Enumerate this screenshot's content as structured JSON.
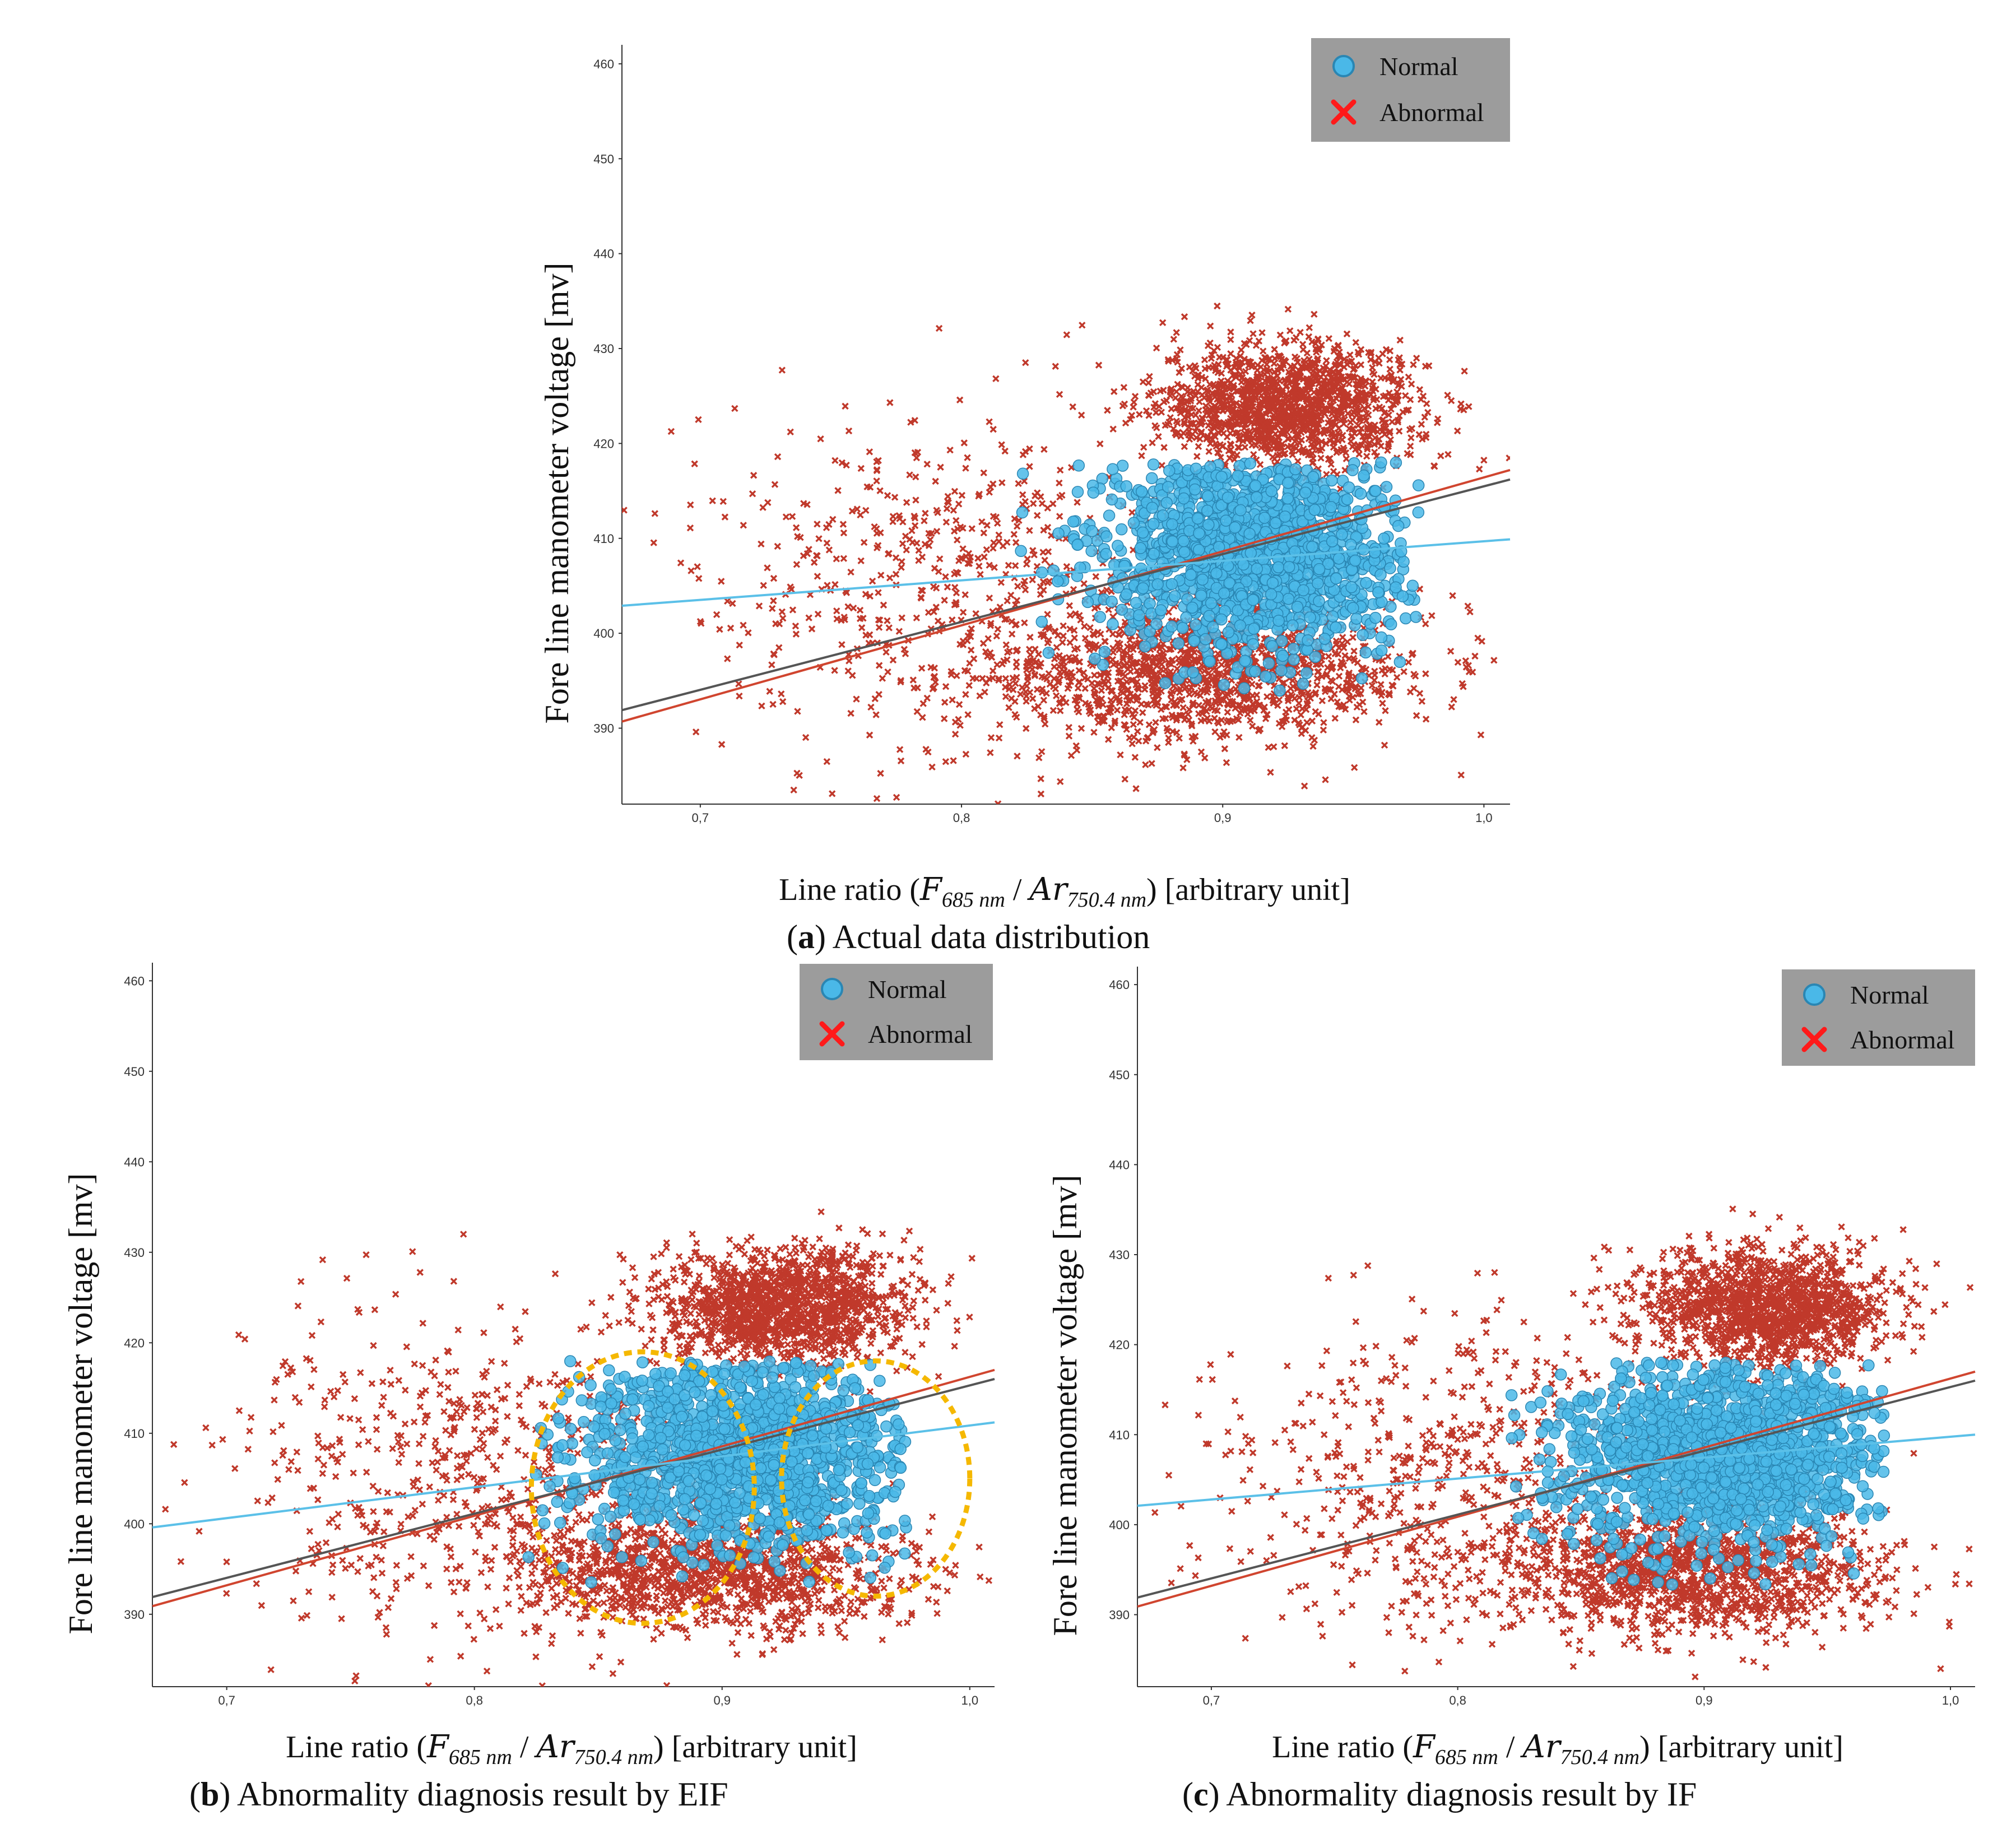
{
  "chart_data": [
    {
      "id": "a",
      "type": "scatter",
      "caption_letter": "a",
      "caption_text": ") Actual data distribution",
      "xlabel_prefix": "Line ratio (",
      "xlabel_F": "F",
      "xlabel_F_sub": "685 nm",
      "xlabel_sep": " / ",
      "xlabel_Ar": "Ar",
      "xlabel_Ar_sub": "750.4 nm",
      "xlabel_suffix": ") [arbitrary unit]",
      "ylabel": "Fore line manometer voltage [mv]",
      "xlim": [
        0.67,
        1.01
      ],
      "ylim": [
        382,
        462
      ],
      "xticks": [
        "0,7",
        "0,8",
        "0,9",
        "1,0"
      ],
      "yticks": [
        "390",
        "400",
        "410",
        "420",
        "430",
        "440",
        "450",
        "460"
      ],
      "legend": {
        "normal": "Normal",
        "abnormal": "Abnormal"
      },
      "series": [
        {
          "name": "Normal",
          "marker": "circle",
          "color": "#4ab8e8",
          "clusters": [
            {
              "x": 0.91,
              "y": 409,
              "sx": 0.03,
              "sy": 5.5,
              "n": 1500
            }
          ]
        },
        {
          "name": "Abnormal",
          "marker": "x",
          "color": "#c0392b",
          "clusters": [
            {
              "x": 0.925,
              "y": 424,
              "sx": 0.025,
              "sy": 3.2,
              "n": 1500
            },
            {
              "x": 0.895,
              "y": 396,
              "sx": 0.04,
              "sy": 3.5,
              "n": 1400
            },
            {
              "x": 0.8,
              "y": 405,
              "sx": 0.05,
              "sy": 9,
              "n": 650
            }
          ]
        }
      ],
      "fit_lines": [
        {
          "name": "red",
          "color": "#d0452f",
          "x": [
            0.67,
            1.01
          ],
          "y": [
            390.7,
            417.2
          ]
        },
        {
          "name": "black",
          "color": "#555555",
          "x": [
            0.67,
            1.01
          ],
          "y": [
            391.9,
            416.2
          ]
        },
        {
          "name": "blue",
          "color": "#5bc0e8",
          "x": [
            0.67,
            1.01
          ],
          "y": [
            402.9,
            409.9
          ]
        }
      ],
      "highlight_ellipses": []
    },
    {
      "id": "b",
      "type": "scatter",
      "caption_letter": "b",
      "caption_text": ") Abnormality diagnosis result by EIF",
      "xlabel_prefix": "Line ratio (",
      "xlabel_F": "F",
      "xlabel_F_sub": "685 nm",
      "xlabel_sep": " / ",
      "xlabel_Ar": "Ar",
      "xlabel_Ar_sub": "750.4 nm",
      "xlabel_suffix": ") [arbitrary unit]",
      "ylabel": "Fore line manometer voltage [mv]",
      "xlim": [
        0.67,
        1.01
      ],
      "ylim": [
        382,
        462
      ],
      "xticks": [
        "0,7",
        "0,8",
        "0,9",
        "1,0"
      ],
      "yticks": [
        "390",
        "400",
        "410",
        "420",
        "430",
        "440",
        "450",
        "460"
      ],
      "legend": {
        "normal": "Normal",
        "abnormal": "Abnormal"
      },
      "series": [
        {
          "name": "Normal",
          "marker": "circle",
          "color": "#4ab8e8",
          "clusters": [
            {
              "x": 0.91,
              "y": 408,
              "sx": 0.035,
              "sy": 5.5,
              "n": 1500
            }
          ]
        },
        {
          "name": "Abnormal",
          "marker": "x",
          "color": "#c0392b",
          "clusters": [
            {
              "x": 0.925,
              "y": 424,
              "sx": 0.025,
              "sy": 3.2,
              "n": 1500
            },
            {
              "x": 0.895,
              "y": 395,
              "sx": 0.04,
              "sy": 3.5,
              "n": 1400
            },
            {
              "x": 0.8,
              "y": 405,
              "sx": 0.05,
              "sy": 9,
              "n": 650
            }
          ]
        }
      ],
      "fit_lines": [
        {
          "name": "red",
          "color": "#d0452f",
          "x": [
            0.67,
            1.01
          ],
          "y": [
            390.9,
            417.0
          ]
        },
        {
          "name": "black",
          "color": "#555555",
          "x": [
            0.67,
            1.01
          ],
          "y": [
            391.9,
            416.0
          ]
        },
        {
          "name": "blue",
          "color": "#5bc0e8",
          "x": [
            0.67,
            1.01
          ],
          "y": [
            399.6,
            411.2
          ]
        }
      ],
      "highlight_ellipses": [
        {
          "cx": 0.868,
          "cy": 404,
          "rx": 0.045,
          "ry": 15,
          "color": "#f5b800"
        },
        {
          "cx": 0.962,
          "cy": 405,
          "rx": 0.038,
          "ry": 13,
          "color": "#f5b800"
        }
      ]
    },
    {
      "id": "c",
      "type": "scatter",
      "caption_letter": "c",
      "caption_text": ") Abnormality diagnosis result by IF",
      "xlabel_prefix": "Line ratio (",
      "xlabel_F": "F",
      "xlabel_F_sub": "685 nm",
      "xlabel_sep": " / ",
      "xlabel_Ar": "Ar",
      "xlabel_Ar_sub": "750.4 nm",
      "xlabel_suffix": ") [arbitrary unit]",
      "ylabel": "Fore line manometer voltage [mv]",
      "xlim": [
        0.67,
        1.01
      ],
      "ylim": [
        382,
        462
      ],
      "xticks": [
        "0,7",
        "0,8",
        "0,9",
        "1,0"
      ],
      "yticks": [
        "390",
        "400",
        "410",
        "420",
        "430",
        "440",
        "450",
        "460"
      ],
      "legend": {
        "normal": "Normal",
        "abnormal": "Abnormal"
      },
      "series": [
        {
          "name": "Normal",
          "marker": "circle",
          "color": "#4ab8e8",
          "clusters": [
            {
              "x": 0.908,
              "y": 408,
              "sx": 0.033,
              "sy": 5.5,
              "n": 1500
            }
          ]
        },
        {
          "name": "Abnormal",
          "marker": "x",
          "color": "#c0392b",
          "clusters": [
            {
              "x": 0.925,
              "y": 424,
              "sx": 0.025,
              "sy": 3.2,
              "n": 1500
            },
            {
              "x": 0.895,
              "y": 395,
              "sx": 0.04,
              "sy": 3.5,
              "n": 1400
            },
            {
              "x": 0.8,
              "y": 405,
              "sx": 0.05,
              "sy": 9,
              "n": 650
            }
          ]
        }
      ],
      "fit_lines": [
        {
          "name": "red",
          "color": "#d0452f",
          "x": [
            0.67,
            1.01
          ],
          "y": [
            390.9,
            417.0
          ]
        },
        {
          "name": "black",
          "color": "#555555",
          "x": [
            0.67,
            1.01
          ],
          "y": [
            391.9,
            416.0
          ]
        },
        {
          "name": "blue",
          "color": "#5bc0e8",
          "x": [
            0.67,
            1.01
          ],
          "y": [
            402.1,
            410.0
          ]
        }
      ],
      "highlight_ellipses": []
    }
  ]
}
